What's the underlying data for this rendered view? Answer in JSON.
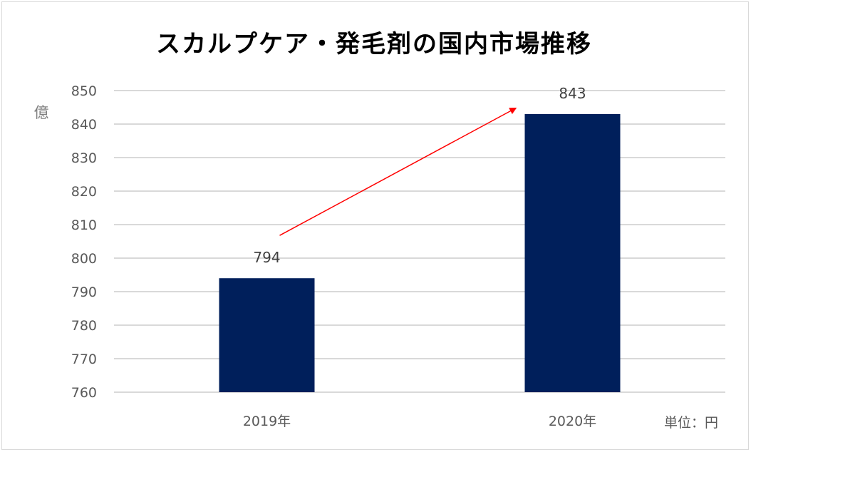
{
  "chart_data": {
    "type": "bar",
    "title": "スカルプケア・発毛剤の国内市場推移",
    "ylabel": "億",
    "xlabel": "",
    "unit_note": "単位：円",
    "categories": [
      "2019年",
      "2020年"
    ],
    "values": [
      794,
      843
    ],
    "data_labels": [
      "794",
      "843"
    ],
    "ylim": [
      760,
      850
    ],
    "yticks": [
      760,
      770,
      780,
      790,
      800,
      810,
      820,
      830,
      840,
      850
    ],
    "grid": true,
    "legend": "none",
    "annotation": "red arrow pointing upward from 2019 toward 2020",
    "colors": {
      "bar": "#001f5b",
      "arrow": "#ff0000",
      "grid": "#d9d9d9"
    }
  }
}
